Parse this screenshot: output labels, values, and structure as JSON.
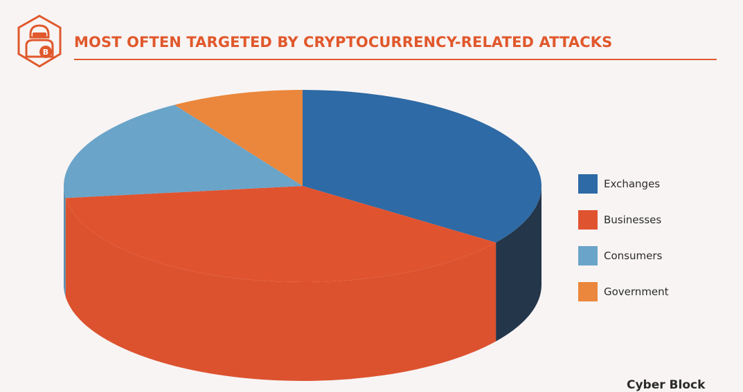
{
  "header": {
    "title": "MOST OFTEN TARGETED BY CRYPTOCURRENCY-RELATED ATTACKS",
    "icon": "hacker-bitcoin-icon",
    "accent": "#e0582c"
  },
  "chart_data": {
    "type": "pie",
    "title": "MOST OFTEN TARGETED BY CRYPTOCURRENCY-RELATED ATTACKS",
    "categories": [
      "Exchanges",
      "Businesses",
      "Consumers",
      "Government"
    ],
    "values": [
      35,
      38,
      18,
      9
    ],
    "colors": [
      "#2e6aa5",
      "#e0532f",
      "#6aa4c9",
      "#ea873c"
    ],
    "side_colors": [
      "#24364a",
      "#dc522f",
      "#5a8fb2",
      "#c8702e"
    ],
    "legend_position": "right",
    "style": "3d"
  },
  "watermark": "Cyber Block"
}
